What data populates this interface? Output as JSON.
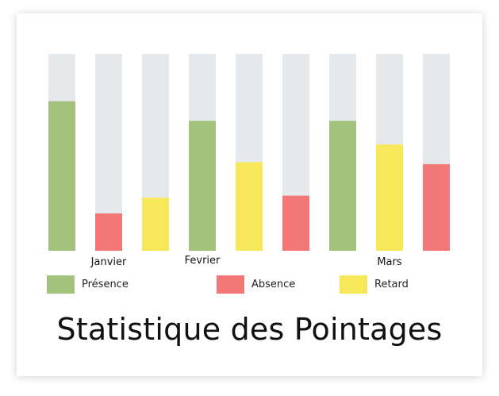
{
  "chart_data": {
    "type": "bar",
    "title": "Statistique des Pointages",
    "categories": [
      "Janvier",
      "Fevrier",
      "Mars"
    ],
    "series": [
      {
        "name": "Présence",
        "color": "#a3c27b",
        "values": [
          76,
          66,
          66
        ]
      },
      {
        "name": "Absence",
        "color": "#f47777",
        "values": [
          19,
          28,
          44
        ]
      },
      {
        "name": "Retard",
        "color": "#f7e85a",
        "values": [
          27,
          45,
          54
        ]
      }
    ],
    "track_color": "#e6e9ec",
    "ylim": [
      0,
      100
    ],
    "grid": false,
    "legend": "bottom"
  }
}
